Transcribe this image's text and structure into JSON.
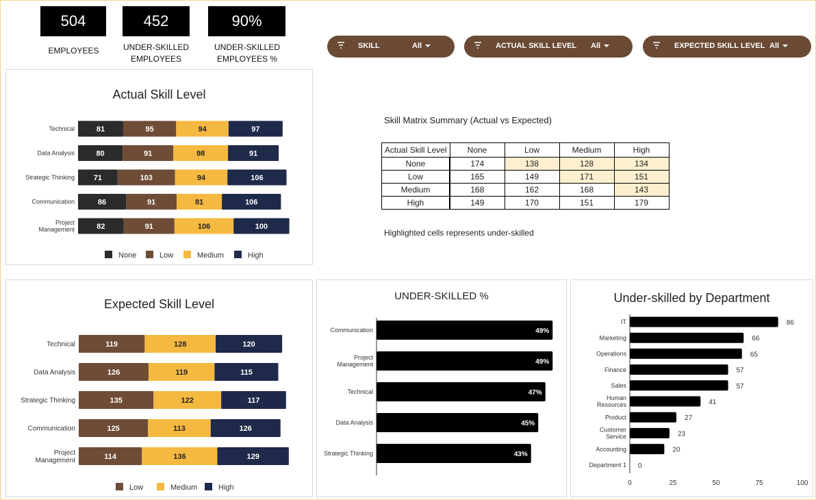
{
  "kpis": [
    {
      "value": "504",
      "label1": "EMPLOYEES",
      "label2": ""
    },
    {
      "value": "452",
      "label1": "UNDER-SKILLED",
      "label2": "EMPLOYEES"
    },
    {
      "value": "90%",
      "label1": "UNDER-SKILLED",
      "label2": "EMPLOYEES %"
    }
  ],
  "filters": [
    {
      "label": "SKILL",
      "value": "All",
      "icon": "filter-icon"
    },
    {
      "label": "ACTUAL SKILL LEVEL",
      "value": "All",
      "icon": "filter-icon"
    },
    {
      "label": "EXPECTED SKILL LEVEL",
      "value": "All",
      "icon": "filter-icon"
    }
  ],
  "summary": {
    "title": "Skill Matrix Summary (Actual vs Expected)",
    "corner": "Actual Skill Level",
    "columns": [
      "None",
      "Low",
      "Medium",
      "High"
    ],
    "rows": [
      {
        "label": "None",
        "values": [
          "174",
          "138",
          "128",
          "134"
        ]
      },
      {
        "label": "Low",
        "values": [
          "165",
          "149",
          "171",
          "151"
        ]
      },
      {
        "label": "Medium",
        "values": [
          "168",
          "162",
          "168",
          "143"
        ]
      },
      {
        "label": "High",
        "values": [
          "149",
          "170",
          "151",
          "179"
        ]
      }
    ],
    "note": "Highlighted cells represents under-skilled"
  },
  "colors": {
    "none": "#2b2b2b",
    "low": "#6e4c36",
    "medium": "#f5b941",
    "high": "#1f2a4a",
    "bar": "#000000",
    "filter": "#6b4a35"
  },
  "chart_data": [
    {
      "type": "bar",
      "orientation": "horizontal-stacked",
      "title": "Actual Skill Level",
      "categories": [
        "Technical",
        "Data Analysis",
        "Strategic Thinking",
        "Communication",
        "Project Management"
      ],
      "series": [
        {
          "name": "None",
          "values": [
            81,
            80,
            71,
            86,
            82
          ]
        },
        {
          "name": "Low",
          "values": [
            95,
            91,
            103,
            91,
            91
          ]
        },
        {
          "name": "Medium",
          "values": [
            94,
            98,
            94,
            81,
            106
          ]
        },
        {
          "name": "High",
          "values": [
            97,
            91,
            106,
            106,
            100
          ]
        }
      ],
      "legend": "bottom"
    },
    {
      "type": "bar",
      "orientation": "horizontal-stacked",
      "title": "Expected Skill Level",
      "categories": [
        "Technical",
        "Data Analysis",
        "Strategic Thinking",
        "Communication",
        "Project Management"
      ],
      "series": [
        {
          "name": "Low",
          "values": [
            119,
            126,
            135,
            125,
            114
          ]
        },
        {
          "name": "Medium",
          "values": [
            128,
            119,
            122,
            113,
            136
          ]
        },
        {
          "name": "High",
          "values": [
            120,
            115,
            117,
            126,
            129
          ]
        }
      ],
      "legend": "bottom"
    },
    {
      "type": "bar",
      "orientation": "horizontal",
      "title": "UNDER-SKILLED %",
      "categories": [
        "Communication",
        "Project Management",
        "Technical",
        "Data Analysis",
        "Strategic Thinking"
      ],
      "values": [
        49,
        49,
        47,
        45,
        43
      ],
      "value_labels": [
        "49%",
        "49%",
        "47%",
        "45%",
        "43%"
      ]
    },
    {
      "type": "bar",
      "orientation": "horizontal",
      "title": "Under-skilled by Department",
      "categories": [
        "IT",
        "Marketing",
        "Operations",
        "Finance",
        "Sales",
        "Human Resources",
        "Product",
        "Customer Service",
        "Accounting",
        "Department 1"
      ],
      "values": [
        86,
        66,
        65,
        57,
        57,
        41,
        27,
        23,
        20,
        0
      ],
      "xlim": [
        0,
        100
      ],
      "xticks": [
        "0",
        "25",
        "50",
        "75",
        "100"
      ]
    }
  ]
}
